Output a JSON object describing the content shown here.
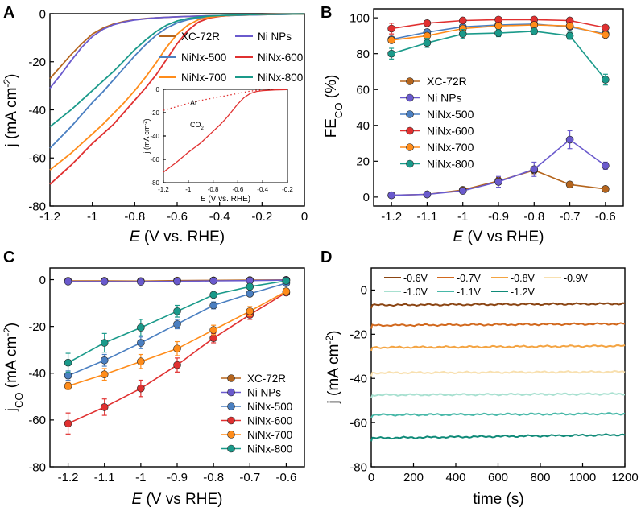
{
  "chart_data": [
    {
      "panel": "A",
      "type": "line",
      "xlabel_italic": "E",
      "xlabel_rest": " (V vs. RHE)",
      "ylabel": "j (mA cm",
      "ylabel_sup": "-2",
      "ylabel_end": ")",
      "xlim": [
        -1.2,
        0
      ],
      "ylim": [
        -80,
        0
      ],
      "xticks": [
        -1.2,
        -1,
        -0.8,
        -0.6,
        -0.4,
        -0.2,
        0
      ],
      "xtick_labels": [
        "-1.2",
        "-1",
        "-0.8",
        "-0.6",
        "-0.4",
        "-0.2",
        "0"
      ],
      "yticks": [
        -80,
        -60,
        -40,
        -20,
        0
      ],
      "ytick_labels": [
        "-80",
        "-60",
        "-40",
        "-20",
        "0"
      ],
      "legend": [
        "XC-72R",
        "Ni NPs",
        "NiNx-500",
        "NiNx-600",
        "NiNx-700",
        "NiNx-800"
      ],
      "series": [
        {
          "name": "XC-72R",
          "color": "#b5651d",
          "x": [
            -1.2,
            -1.15,
            -1.1,
            -1.05,
            -1.0,
            -0.95,
            -0.9,
            -0.85,
            -0.8,
            -0.75,
            -0.7,
            -0.6,
            -0.5,
            -0.4,
            -0.3,
            -0.2,
            0
          ],
          "y": [
            -27,
            -22,
            -17,
            -12.5,
            -8.5,
            -6,
            -4.3,
            -3.2,
            -2.5,
            -2,
            -1.7,
            -1.3,
            -1.0,
            -0.8,
            -0.6,
            -0.4,
            -0.1
          ]
        },
        {
          "name": "Ni NPs",
          "color": "#6a5acd",
          "x": [
            -1.2,
            -1.15,
            -1.1,
            -1.05,
            -1.0,
            -0.95,
            -0.9,
            -0.85,
            -0.8,
            -0.75,
            -0.7,
            -0.6,
            -0.5,
            -0.4,
            -0.3,
            -0.2,
            0
          ],
          "y": [
            -31,
            -25.5,
            -19.5,
            -14,
            -9.5,
            -6.5,
            -4.6,
            -3.4,
            -2.6,
            -2.1,
            -1.7,
            -1.3,
            -1.0,
            -0.8,
            -0.6,
            -0.4,
            -0.1
          ]
        },
        {
          "name": "NiNx-500",
          "color": "#4a7fc1",
          "x": [
            -1.2,
            -1.1,
            -1.0,
            -0.95,
            -0.9,
            -0.85,
            -0.8,
            -0.75,
            -0.7,
            -0.65,
            -0.6,
            -0.55,
            -0.5,
            -0.45,
            -0.4,
            -0.3,
            -0.2,
            0
          ],
          "y": [
            -56,
            -47,
            -37,
            -32.5,
            -27.5,
            -22.5,
            -17.5,
            -13,
            -9,
            -6,
            -3.8,
            -2.5,
            -1.8,
            -1.3,
            -1.0,
            -0.6,
            -0.4,
            -0.1
          ]
        },
        {
          "name": "NiNx-600",
          "color": "#e03030",
          "x": [
            -1.2,
            -1.1,
            -1.0,
            -0.95,
            -0.9,
            -0.85,
            -0.8,
            -0.75,
            -0.7,
            -0.65,
            -0.6,
            -0.55,
            -0.5,
            -0.45,
            -0.4,
            -0.35,
            -0.3,
            -0.2,
            0
          ],
          "y": [
            -71,
            -63,
            -54,
            -50,
            -46,
            -41,
            -36,
            -31,
            -25.5,
            -19,
            -12.5,
            -7,
            -3.5,
            -1.8,
            -1.1,
            -0.7,
            -0.5,
            -0.3,
            -0.1
          ]
        },
        {
          "name": "NiNx-700",
          "color": "#ff8c1a",
          "x": [
            -1.2,
            -1.1,
            -1.0,
            -0.95,
            -0.9,
            -0.85,
            -0.8,
            -0.75,
            -0.7,
            -0.65,
            -0.6,
            -0.55,
            -0.5,
            -0.45,
            -0.4,
            -0.35,
            -0.3,
            -0.2,
            0
          ],
          "y": [
            -65,
            -58,
            -50,
            -46,
            -41.5,
            -37,
            -32,
            -26.5,
            -20.5,
            -14,
            -8.5,
            -4.8,
            -2.5,
            -1.5,
            -1.0,
            -0.7,
            -0.5,
            -0.3,
            -0.1
          ]
        },
        {
          "name": "NiNx-800",
          "color": "#1a9a8a",
          "x": [
            -1.2,
            -1.1,
            -1.0,
            -0.95,
            -0.9,
            -0.85,
            -0.8,
            -0.75,
            -0.7,
            -0.65,
            -0.6,
            -0.55,
            -0.5,
            -0.45,
            -0.4,
            -0.3,
            -0.2,
            0
          ],
          "y": [
            -47,
            -40,
            -32,
            -28,
            -24,
            -19.5,
            -15,
            -11,
            -7.5,
            -4.8,
            -3,
            -2,
            -1.4,
            -1.0,
            -0.8,
            -0.5,
            -0.3,
            -0.1
          ]
        }
      ],
      "inset": {
        "xlabel_italic": "E",
        "xlabel_rest": " (V vs. RHE)",
        "ylabel": "j (mA cm",
        "ylabel_sup": "-2",
        "ylabel_end": ")",
        "xlim": [
          -1.2,
          -0.2
        ],
        "ylim": [
          -80,
          0
        ],
        "xticks": [
          -1.2,
          -1,
          -0.8,
          -0.6,
          -0.4,
          -0.2
        ],
        "xtick_labels": [
          "-1.2",
          "-1",
          "-0.8",
          "-0.6",
          "-0.4",
          "-0.2"
        ],
        "yticks": [
          -80,
          -60,
          -40,
          -20,
          0
        ],
        "ytick_labels": [
          "-80",
          "-60",
          "-40",
          "-20",
          "0"
        ],
        "label_ar": "Ar",
        "label_co2": "CO",
        "label_co2_sub": "2",
        "series": [
          {
            "name": "Ar",
            "style": "dotted",
            "color": "#e03030",
            "x": [
              -1.2,
              -1.1,
              -1.0,
              -0.9,
              -0.8,
              -0.7,
              -0.6,
              -0.55,
              -0.5,
              -0.45,
              -0.4,
              -0.3,
              -0.2
            ],
            "y": [
              -18,
              -15,
              -12,
              -9.5,
              -7.5,
              -5.5,
              -3.5,
              -2.5,
              -1.5,
              -0.9,
              -0.5,
              -0.3,
              -0.2
            ]
          },
          {
            "name": "CO2",
            "style": "solid",
            "color": "#e03030",
            "x": [
              -1.2,
              -1.1,
              -1.0,
              -0.95,
              -0.9,
              -0.85,
              -0.8,
              -0.75,
              -0.7,
              -0.65,
              -0.6,
              -0.55,
              -0.5,
              -0.45,
              -0.4,
              -0.3,
              -0.2
            ],
            "y": [
              -71,
              -63,
              -54,
              -50,
              -46,
              -41,
              -36,
              -31,
              -25.5,
              -19,
              -12.5,
              -7,
              -3.5,
              -1.8,
              -1.1,
              -0.5,
              -0.3
            ]
          }
        ]
      }
    },
    {
      "panel": "B",
      "type": "line",
      "xlabel_italic": "E",
      "xlabel_rest": " (V vs RHE)",
      "ylabel": "FE",
      "ylabel_sub": "CO",
      "ylabel_end": " (%)",
      "xlim": [
        -1.25,
        -0.55
      ],
      "ylim": [
        -5,
        105
      ],
      "xticks": [
        -1.2,
        -1.1,
        -1.0,
        -0.9,
        -0.8,
        -0.7,
        -0.6
      ],
      "xtick_labels": [
        "-1.2",
        "-1.1",
        "-1",
        "-0.9",
        "-0.8",
        "-0.7",
        "-0.6"
      ],
      "yticks": [
        0,
        20,
        40,
        60,
        80,
        100
      ],
      "ytick_labels": [
        "0",
        "20",
        "40",
        "60",
        "80",
        "100"
      ],
      "legend": [
        "XC-72R",
        "Ni NPs",
        "NiNx-500",
        "NiNx-600",
        "NiNx-700",
        "NiNx-800"
      ],
      "series": [
        {
          "name": "XC-72R",
          "color": "#b5651d",
          "x": [
            -1.2,
            -1.1,
            -1.0,
            -0.9,
            -0.8,
            -0.7,
            -0.6
          ],
          "y": [
            1,
            1.5,
            4,
            9,
            15,
            7,
            4.5
          ],
          "err": [
            0.5,
            0.5,
            1,
            2,
            2,
            1,
            1
          ]
        },
        {
          "name": "Ni NPs",
          "color": "#6a5acd",
          "x": [
            -1.2,
            -1.1,
            -1.0,
            -0.9,
            -0.8,
            -0.7,
            -0.6
          ],
          "y": [
            1,
            1.5,
            3.5,
            8.5,
            15.5,
            32,
            17.5
          ],
          "err": [
            0.5,
            0.5,
            1,
            3,
            4,
            5,
            2
          ]
        },
        {
          "name": "NiNx-500",
          "color": "#4a7fc1",
          "x": [
            -1.2,
            -1.1,
            -1.0,
            -0.9,
            -0.8,
            -0.7,
            -0.6
          ],
          "y": [
            88,
            92,
            95,
            96,
            96.5,
            95,
            91
          ],
          "err": [
            1.5,
            1.5,
            1,
            1,
            1,
            1,
            1.5
          ]
        },
        {
          "name": "NiNx-600",
          "color": "#e03030",
          "x": [
            -1.2,
            -1.1,
            -1.0,
            -0.9,
            -0.8,
            -0.7,
            -0.6
          ],
          "y": [
            94,
            97,
            98.5,
            99,
            99,
            98.5,
            94.5
          ],
          "err": [
            3,
            1,
            1,
            1,
            1,
            1,
            1
          ]
        },
        {
          "name": "NiNx-700",
          "color": "#ff8c1a",
          "x": [
            -1.2,
            -1.1,
            -1.0,
            -0.9,
            -0.8,
            -0.7,
            -0.6
          ],
          "y": [
            87.5,
            90,
            94,
            95.5,
            96,
            95.5,
            90.5
          ],
          "err": [
            1.5,
            1.5,
            1,
            1,
            1,
            1,
            1.5
          ]
        },
        {
          "name": "NiNx-800",
          "color": "#1a9a8a",
          "x": [
            -1.2,
            -1.1,
            -1.0,
            -0.9,
            -0.8,
            -0.7,
            -0.6
          ],
          "y": [
            80,
            86,
            91,
            91.5,
            92.5,
            90,
            65.5
          ],
          "err": [
            3,
            2.5,
            2.5,
            2,
            1.5,
            2,
            3
          ]
        }
      ]
    },
    {
      "panel": "C",
      "type": "line",
      "xlabel_italic": "E",
      "xlabel_rest": " (V vs RHE)",
      "ylabel": "j",
      "ylabel_sub": "CO",
      "ylabel_mid": " (mA cm",
      "ylabel_sup": "-2",
      "ylabel_end": ")",
      "xlim": [
        -1.25,
        -0.55
      ],
      "ylim": [
        -80,
        5
      ],
      "xticks": [
        -1.2,
        -1.1,
        -1.0,
        -0.9,
        -0.8,
        -0.7,
        -0.6
      ],
      "xtick_labels": [
        "-1.2",
        "-1.1",
        "-1",
        "-0.9",
        "-0.8",
        "-0.7",
        "-0.6"
      ],
      "yticks": [
        -80,
        -60,
        -40,
        -20,
        0
      ],
      "ytick_labels": [
        "-80",
        "-60",
        "-40",
        "-20",
        "0"
      ],
      "legend": [
        "XC-72R",
        "Ni NPs",
        "NiNx-500",
        "NiNx-600",
        "NiNx-700",
        "NiNx-800"
      ],
      "series": [
        {
          "name": "XC-72R",
          "color": "#b5651d",
          "x": [
            -1.2,
            -1.1,
            -1.0,
            -0.9,
            -0.8,
            -0.7,
            -0.6
          ],
          "y": [
            -0.5,
            -0.5,
            -0.6,
            -0.4,
            -0.3,
            -0.2,
            -0.1
          ],
          "err": [
            0,
            0,
            0,
            0,
            0,
            0,
            0
          ]
        },
        {
          "name": "Ni NPs",
          "color": "#6a5acd",
          "x": [
            -1.2,
            -1.1,
            -1.0,
            -0.9,
            -0.8,
            -0.7,
            -0.6
          ],
          "y": [
            -0.8,
            -0.8,
            -0.9,
            -0.7,
            -0.5,
            -0.4,
            -0.2
          ],
          "err": [
            0,
            0,
            0,
            0,
            0,
            0,
            0
          ]
        },
        {
          "name": "NiNx-500",
          "color": "#4a7fc1",
          "x": [
            -1.2,
            -1.1,
            -1.0,
            -0.9,
            -0.8,
            -0.7,
            -0.6
          ],
          "y": [
            -41,
            -34.5,
            -27,
            -19,
            -11,
            -6,
            -1.5
          ],
          "err": [
            2,
            2.5,
            2.5,
            2,
            1.5,
            1,
            0.5
          ]
        },
        {
          "name": "NiNx-600",
          "color": "#e03030",
          "x": [
            -1.2,
            -1.1,
            -1.0,
            -0.9,
            -0.8,
            -0.7,
            -0.6
          ],
          "y": [
            -61.5,
            -54.5,
            -46.5,
            -36.5,
            -25,
            -15,
            -5.5
          ],
          "err": [
            4.5,
            3.5,
            3.5,
            3,
            2,
            2,
            1
          ]
        },
        {
          "name": "NiNx-700",
          "color": "#ff8c1a",
          "x": [
            -1.2,
            -1.1,
            -1.0,
            -0.9,
            -0.8,
            -0.7,
            -0.6
          ],
          "y": [
            -45.5,
            -40.5,
            -35,
            -29.5,
            -21.5,
            -13.5,
            -5
          ],
          "err": [
            1.5,
            2.5,
            3,
            3,
            2,
            2,
            1
          ]
        },
        {
          "name": "NiNx-800",
          "color": "#1a9a8a",
          "x": [
            -1.2,
            -1.1,
            -1.0,
            -0.9,
            -0.8,
            -0.7,
            -0.6
          ],
          "y": [
            -35.5,
            -27,
            -20.5,
            -13.5,
            -6.5,
            -3,
            -0.5
          ],
          "err": [
            4,
            4,
            3.5,
            2.5,
            1,
            0.5,
            0.3
          ]
        }
      ]
    },
    {
      "panel": "D",
      "type": "line",
      "xlabel": "time (s)",
      "ylabel": "j (mA cm",
      "ylabel_sup": "-2",
      "ylabel_end": ")",
      "xlim": [
        0,
        1200
      ],
      "ylim": [
        -80,
        10
      ],
      "xticks": [
        0,
        200,
        400,
        600,
        800,
        1000,
        1200
      ],
      "xtick_labels": [
        "0",
        "200",
        "400",
        "600",
        "800",
        "1000",
        "1200"
      ],
      "yticks": [
        -80,
        -60,
        -40,
        -20,
        0
      ],
      "ytick_labels": [
        "-80",
        "-60",
        "-40",
        "-20",
        "0"
      ],
      "legend": [
        "-0.6V",
        "-0.7V",
        "-0.8V",
        "-0.9V",
        "-1.0V",
        "-1.1V",
        "-1.2V"
      ],
      "series": [
        {
          "name": "-0.6V",
          "color": "#8b4513",
          "y0": -6.8,
          "y1": -6.2
        },
        {
          "name": "-0.7V",
          "color": "#d2691e",
          "y0": -16,
          "y1": -15.3
        },
        {
          "name": "-0.8V",
          "color": "#f4a442",
          "y0": -26,
          "y1": -25.3
        },
        {
          "name": "-0.9V",
          "color": "#f8e0b0",
          "y0": -37.5,
          "y1": -37
        },
        {
          "name": "-1.0V",
          "color": "#a8e0d0",
          "y0": -47.5,
          "y1": -47
        },
        {
          "name": "-1.1V",
          "color": "#48b8a8",
          "y0": -56.5,
          "y1": -56
        },
        {
          "name": "-1.2V",
          "color": "#0f8a78",
          "y0": -67,
          "y1": -65.5
        }
      ]
    }
  ]
}
